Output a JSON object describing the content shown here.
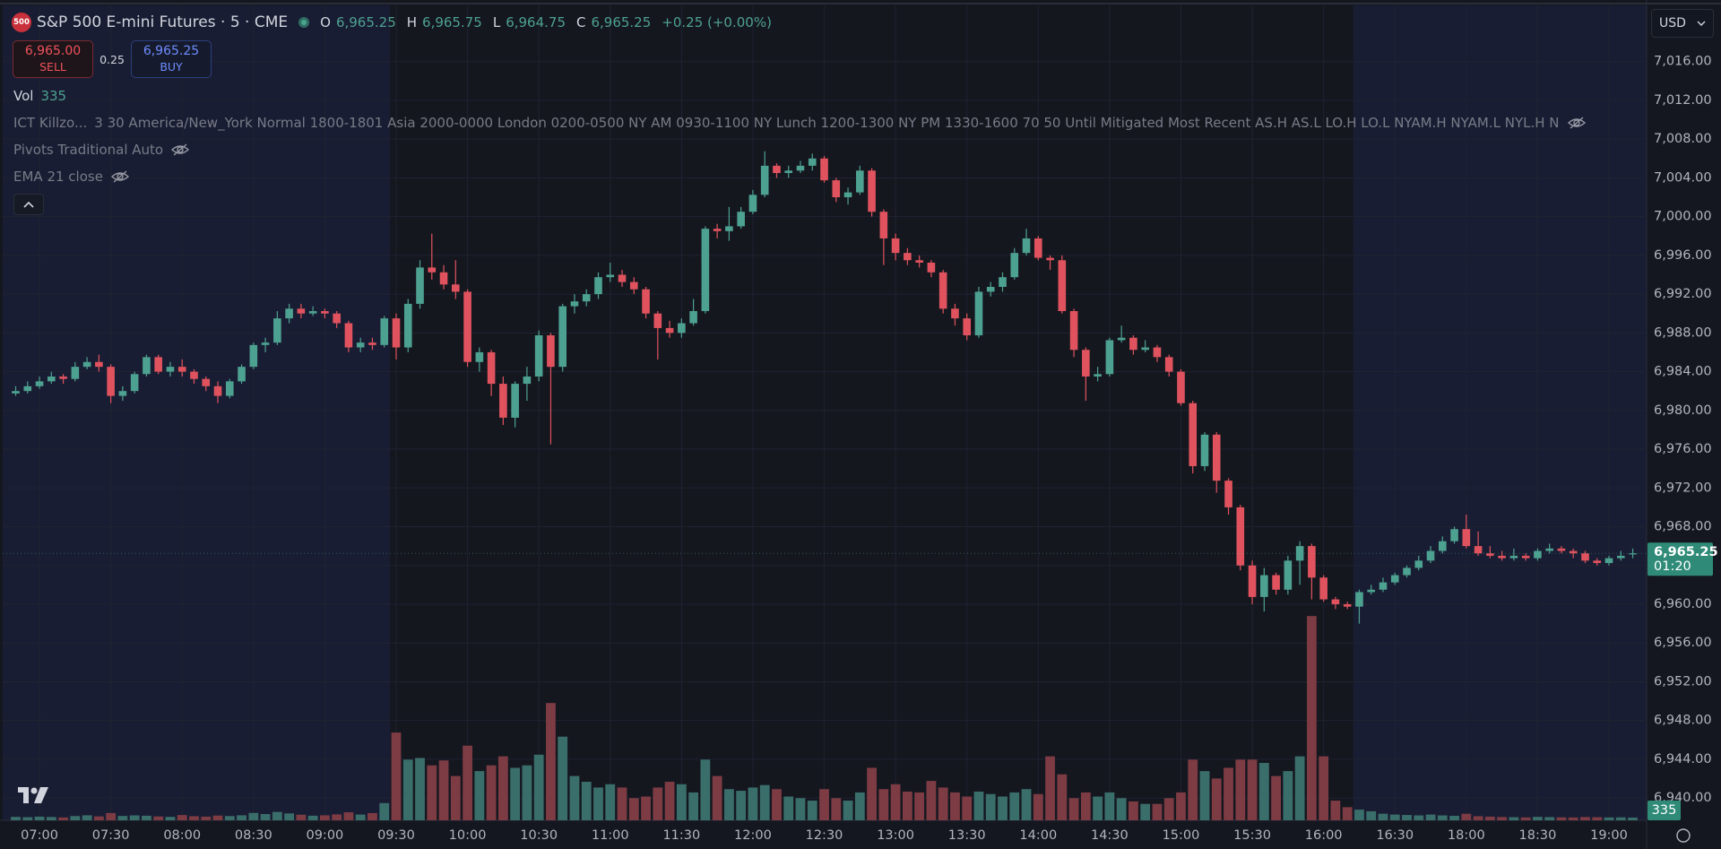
{
  "header": {
    "badge": "500",
    "title": "S&P 500 E-mini Futures · 5 · CME",
    "ohlc": [
      {
        "key": "O",
        "value": "6,965.25"
      },
      {
        "key": "H",
        "value": "6,965.75"
      },
      {
        "key": "L",
        "value": "6,964.75"
      },
      {
        "key": "C",
        "value": "6,965.25"
      }
    ],
    "change": "+0.25 (+0.00%)"
  },
  "trade": {
    "sell_price": "6,965.00",
    "sell": "SELL",
    "spread": "0.25",
    "buy_price": "6,965.25",
    "buy": "BUY"
  },
  "legend": {
    "volume": "Vol",
    "indicators": [
      {
        "name": "ICT Killzo...",
        "args": "3 30 America/New_York Normal 1800-1801 Asia 2000-0000 London 0200-0500 NY AM 0930-1100 NY Lunch 1200-1300 NY PM 1330-1600 70 50 Until Mitigated Most Recent AS.H AS.L LO.H LO.L NYAM.H NYAM.L NYL.H N"
      },
      {
        "name": "Pivots Traditional Auto"
      },
      {
        "name": "EMA 21 close"
      }
    ]
  },
  "currency": "USD",
  "chart_data": {
    "type": "candlestick",
    "x": [
      "06:50",
      "06:55",
      "07:00",
      "07:05",
      "07:10",
      "07:15",
      "07:20",
      "07:25",
      "07:30",
      "07:35",
      "07:40",
      "07:45",
      "07:50",
      "07:55",
      "08:00",
      "08:05",
      "08:10",
      "08:15",
      "08:20",
      "08:25",
      "08:30",
      "08:35",
      "08:40",
      "08:45",
      "08:50",
      "08:55",
      "09:00",
      "09:05",
      "09:10",
      "09:15",
      "09:20",
      "09:25",
      "09:30",
      "09:35",
      "09:40",
      "09:45",
      "09:50",
      "09:55",
      "10:00",
      "10:05",
      "10:10",
      "10:15",
      "10:20",
      "10:25",
      "10:30",
      "10:35",
      "10:40",
      "10:45",
      "10:50",
      "10:55",
      "11:00",
      "11:05",
      "11:10",
      "11:15",
      "11:20",
      "11:25",
      "11:30",
      "11:35",
      "11:40",
      "11:45",
      "11:50",
      "11:55",
      "12:00",
      "12:05",
      "12:10",
      "12:15",
      "12:20",
      "12:25",
      "12:30",
      "12:35",
      "12:40",
      "12:45",
      "12:50",
      "12:55",
      "13:00",
      "13:05",
      "13:10",
      "13:15",
      "13:20",
      "13:25",
      "13:30",
      "13:35",
      "13:40",
      "13:45",
      "13:50",
      "13:55",
      "14:00",
      "14:05",
      "14:10",
      "14:15",
      "14:20",
      "14:25",
      "14:30",
      "14:35",
      "14:40",
      "14:45",
      "14:50",
      "14:55",
      "15:00",
      "15:05",
      "15:10",
      "15:15",
      "15:20",
      "15:25",
      "15:30",
      "15:35",
      "15:40",
      "15:45",
      "15:50",
      "15:55",
      "16:00",
      "16:05",
      "16:10",
      "16:15",
      "16:20",
      "16:25",
      "16:30",
      "16:35",
      "16:40",
      "16:45",
      "16:50",
      "16:55",
      "18:00",
      "18:05",
      "18:10",
      "18:15",
      "18:20",
      "18:25",
      "18:30",
      "18:35",
      "18:40",
      "18:45",
      "18:50",
      "18:55",
      "19:00",
      "19:05",
      "19:10"
    ],
    "open": [
      6981.75,
      6982,
      6982.5,
      6983,
      6983.5,
      6983.25,
      6984.5,
      6985,
      6984.5,
      6981.5,
      6982,
      6983.75,
      6985.5,
      6984,
      6984.5,
      6984,
      6983.25,
      6982.5,
      6981.5,
      6983,
      6984.5,
      6986.75,
      6987,
      6989.5,
      6990.5,
      6990,
      6990.25,
      6990,
      6989,
      6986.5,
      6987,
      6986.75,
      6989.5,
      6986.5,
      6991,
      6994.75,
      6994.25,
      6993,
      6992.25,
      6985,
      6986,
      6982.75,
      6979.25,
      6982.75,
      6983.5,
      6987.75,
      6984.5,
      6990.75,
      6991.25,
      6992,
      6993.75,
      6994,
      6993.25,
      6992.5,
      6990,
      6988.5,
      6988,
      6989,
      6990.25,
      6998.75,
      6998.5,
      6999,
      7000.5,
      7002.25,
      7005.25,
      7004.5,
      7004.75,
      7005.25,
      7006,
      7003.75,
      7002,
      7002.5,
      7004.75,
      7000.5,
      6997.75,
      6996.25,
      6995.5,
      6995.25,
      6994.25,
      6990.5,
      6989.5,
      6987.75,
      6992.25,
      6992.75,
      6993.75,
      6996.25,
      6997.75,
      6995.75,
      6995.5,
      6990.25,
      6986.25,
      6983.5,
      6983.75,
      6987.25,
      6987.5,
      6986.25,
      6986.5,
      6985.5,
      6984,
      6980.75,
      6974.25,
      6977.5,
      6972.75,
      6970,
      6964,
      6960.75,
      6963,
      6961.5,
      6964.5,
      6966,
      6962.75,
      6960.5,
      6960,
      6959.75,
      6961.25,
      6961.5,
      6962.25,
      6963,
      6963.75,
      6964.5,
      6965.5,
      6966.5,
      6967.75,
      6966,
      6965.25,
      6965,
      6964.75,
      6965,
      6964.75,
      6965.5,
      6965.75,
      6965.5,
      6965.25,
      6964.5,
      6964.25,
      6964.75,
      6965.25
    ],
    "high": [
      6982.5,
      6983,
      6983.5,
      6984,
      6983.75,
      6985,
      6985.5,
      6985.75,
      6984.75,
      6982.5,
      6984,
      6985.75,
      6985.75,
      6985,
      6985.25,
      6984.25,
      6983.5,
      6983,
      6983.25,
      6984.75,
      6987,
      6987.5,
      6990.25,
      6991,
      6991,
      6990.75,
      6990.5,
      6990.25,
      6989.25,
      6987.5,
      6987.5,
      6989.75,
      6990,
      6991.5,
      6995.5,
      6998.25,
      6995,
      6995.5,
      6992.5,
      6986.5,
      6986.25,
      6983.5,
      6983,
      6984.5,
      6988.25,
      6988,
      6991,
      6992,
      6992.5,
      6994.25,
      6995.25,
      6994.5,
      6993.75,
      6992.75,
      6990.25,
      6989.25,
      6989.5,
      6991.5,
      6999,
      6999.25,
      7001,
      7001,
      7002.75,
      7006.75,
      7005.5,
      7005.25,
      7005.75,
      7006.5,
      7006.25,
      7004,
      7003,
      7005.25,
      7005,
      7000.75,
      6998.25,
      6996.75,
      6996,
      6995.5,
      6994.5,
      6991,
      6990,
      6992.75,
      6993.25,
      6994.25,
      6996.75,
      6998.75,
      6998,
      6996,
      6996,
      6990.5,
      6986.5,
      6984.5,
      6987.5,
      6988.75,
      6987.75,
      6987.25,
      6986.75,
      6985.75,
      6984.25,
      6981,
      6977.75,
      6977.75,
      6973,
      6970.25,
      6964.5,
      6963.75,
      6963.25,
      6965,
      6966.5,
      6966.25,
      6963,
      6960.75,
      6960.25,
      6961.5,
      6962,
      6962.75,
      6963.25,
      6964,
      6965,
      6966,
      6967,
      6968,
      6969.25,
      6967.5,
      6966,
      6965.5,
      6965.75,
      6965.25,
      6965.75,
      6966.25,
      6966,
      6965.75,
      6965.5,
      6964.75,
      6965,
      6965.5,
      6965.75
    ],
    "low": [
      6981.5,
      6981.75,
      6982.25,
      6982.75,
      6982.75,
      6983,
      6984.25,
      6984,
      6980.75,
      6981,
      6981.75,
      6983.5,
      6983.75,
      6983.5,
      6983.5,
      6982.75,
      6982,
      6980.75,
      6981.25,
      6982.75,
      6984.25,
      6986,
      6986.75,
      6989,
      6989.5,
      6989.75,
      6989.5,
      6988.5,
      6986,
      6986,
      6986.25,
      6986.5,
      6985.25,
      6986,
      6990.5,
      6993.5,
      6992.5,
      6991.5,
      6984.5,
      6984,
      6981.5,
      6978.5,
      6978.25,
      6981,
      6983,
      6976.5,
      6984,
      6990,
      6990.75,
      6991.5,
      6993.25,
      6992.75,
      6992,
      6989.5,
      6985.25,
      6987.5,
      6987.5,
      6988.75,
      6990,
      6997.75,
      6997.5,
      6998.75,
      7000.25,
      7002,
      7004,
      7004,
      7004.5,
      7004.75,
      7003.5,
      7001.5,
      7001.25,
      7002.25,
      7000,
      6995,
      6995.5,
      6995,
      6994.75,
      6993.75,
      6990,
      6988.75,
      6987.25,
      6987.5,
      6991.75,
      6992.25,
      6993.5,
      6996,
      6995.5,
      6994.5,
      6990,
      6985.5,
      6981,
      6983,
      6983.5,
      6987,
      6985.75,
      6986,
      6985,
      6983.5,
      6980.5,
      6973.5,
      6973.75,
      6971.5,
      6969.25,
      6963.5,
      6960,
      6959.25,
      6961,
      6961,
      6962,
      6960.5,
      6960.25,
      6959.5,
      6959.5,
      6958,
      6961,
      6961.25,
      6962,
      6962.75,
      6963.5,
      6964.25,
      6965.25,
      6966.25,
      6965.75,
      6965,
      6964.75,
      6964.5,
      6964.5,
      6964.5,
      6964.5,
      6965.25,
      6965.25,
      6964.75,
      6964.25,
      6964,
      6964,
      6964.5,
      6964.75
    ],
    "close": [
      6982,
      6982.5,
      6983,
      6983.5,
      6983.25,
      6984.5,
      6985,
      6984.5,
      6981.5,
      6982,
      6983.75,
      6985.5,
      6984,
      6984.5,
      6984,
      6983.25,
      6982.5,
      6981.5,
      6983,
      6984.5,
      6986.75,
      6987,
      6989.5,
      6990.5,
      6990,
      6990.25,
      6990,
      6989,
      6986.5,
      6987,
      6986.75,
      6989.5,
      6986.5,
      6991,
      6994.75,
      6994.25,
      6993,
      6992.25,
      6985,
      6986,
      6982.75,
      6979.25,
      6982.75,
      6983.5,
      6987.75,
      6984.5,
      6990.75,
      6991.25,
      6992,
      6993.75,
      6994,
      6993.25,
      6992.5,
      6990,
      6988.5,
      6988,
      6989,
      6990.25,
      6998.75,
      6998.5,
      6999,
      7000.5,
      7002.25,
      7005.25,
      7004.5,
      7004.75,
      7005.25,
      7006,
      7003.75,
      7002,
      7002.5,
      7004.75,
      7000.5,
      6997.75,
      6996.25,
      6995.5,
      6995.25,
      6994.25,
      6990.5,
      6989.5,
      6987.75,
      6992.25,
      6992.75,
      6993.75,
      6996.25,
      6997.75,
      6995.75,
      6995.5,
      6990.25,
      6986.25,
      6983.5,
      6983.75,
      6987.25,
      6987.5,
      6986.25,
      6986.5,
      6985.5,
      6984,
      6980.75,
      6974.25,
      6977.5,
      6972.75,
      6970,
      6964,
      6960.75,
      6963,
      6961.5,
      6964.5,
      6966,
      6962.75,
      6960.5,
      6960,
      6959.75,
      6961.25,
      6961.5,
      6962.25,
      6963,
      6963.75,
      6964.5,
      6965.5,
      6966.5,
      6967.75,
      6966,
      6965.25,
      6965,
      6964.75,
      6965,
      6964.75,
      6965.5,
      6965.75,
      6965.5,
      6965.25,
      6964.5,
      6964.25,
      6964.75,
      6965,
      6965.25
    ],
    "volume": [
      420,
      380,
      450,
      400,
      350,
      520,
      610,
      480,
      890,
      530,
      600,
      560,
      470,
      420,
      640,
      500,
      450,
      580,
      520,
      610,
      900,
      760,
      1020,
      840,
      680,
      560,
      610,
      720,
      980,
      700,
      880,
      2100,
      10700,
      7400,
      7600,
      6700,
      7300,
      5400,
      9100,
      6000,
      6700,
      7800,
      6400,
      6700,
      8000,
      14300,
      10200,
      5400,
      4700,
      4000,
      4400,
      4000,
      2700,
      2900,
      4000,
      4700,
      4400,
      3400,
      7400,
      5400,
      3800,
      3600,
      4000,
      4300,
      3800,
      2900,
      2700,
      2400,
      3800,
      2700,
      2400,
      3400,
      6400,
      3800,
      4400,
      3500,
      3400,
      4800,
      4000,
      3400,
      2900,
      3500,
      3200,
      2900,
      3400,
      3800,
      3200,
      7800,
      5600,
      2700,
      3400,
      2900,
      3400,
      2700,
      2300,
      2000,
      2000,
      2700,
      3400,
      7400,
      6000,
      5100,
      6400,
      7400,
      7400,
      7000,
      5400,
      6000,
      7800,
      24900,
      7800,
      2400,
      1600,
      1300,
      1100,
      800,
      700,
      650,
      600,
      700,
      600,
      550,
      800,
      500,
      450,
      400,
      380,
      350,
      420,
      390,
      360,
      340,
      400,
      380,
      350,
      360,
      335
    ],
    "colors": {
      "up": "#4da191",
      "down": "#e0535e",
      "volume_up": "#3a6e6a",
      "volume_down": "#7d3b44"
    },
    "session_shading": [
      "09:30",
      "16:15"
    ],
    "ylim": [
      6937.7,
      7021.8
    ],
    "yticks": [
      {
        "value": 7016,
        "label": "7,016.00"
      },
      {
        "value": 7012,
        "label": "7,012.00"
      },
      {
        "value": 7008,
        "label": "7,008.00"
      },
      {
        "value": 7004,
        "label": "7,004.00"
      },
      {
        "value": 7000,
        "label": "7,000.00"
      },
      {
        "value": 6996,
        "label": "6,996.00"
      },
      {
        "value": 6992,
        "label": "6,992.00"
      },
      {
        "value": 6988,
        "label": "6,988.00"
      },
      {
        "value": 6984,
        "label": "6,984.00"
      },
      {
        "value": 6980,
        "label": "6,980.00"
      },
      {
        "value": 6976,
        "label": "6,976.00"
      },
      {
        "value": 6972,
        "label": "6,972.00"
      },
      {
        "value": 6968,
        "label": "6,968.00"
      },
      {
        "value": 6964,
        "label": "6,964.00"
      },
      {
        "value": 6960,
        "label": "6,960.00"
      },
      {
        "value": 6956,
        "label": "6,956.00"
      },
      {
        "value": 6952,
        "label": "6,952.00"
      },
      {
        "value": 6948,
        "label": "6,948.00"
      },
      {
        "value": 6944,
        "label": "6,944.00"
      },
      {
        "value": 6940,
        "label": "6,940.00"
      }
    ],
    "xticks": [
      "07:00",
      "07:30",
      "08:00",
      "08:30",
      "09:00",
      "09:30",
      "10:00",
      "10:30",
      "11:00",
      "11:30",
      "12:00",
      "12:30",
      "13:00",
      "13:30",
      "14:00",
      "14:30",
      "15:00",
      "15:30",
      "16:00",
      "16:30",
      "18:00",
      "18:30",
      "19:00"
    ],
    "countdown": "01:20",
    "grid": true
  }
}
